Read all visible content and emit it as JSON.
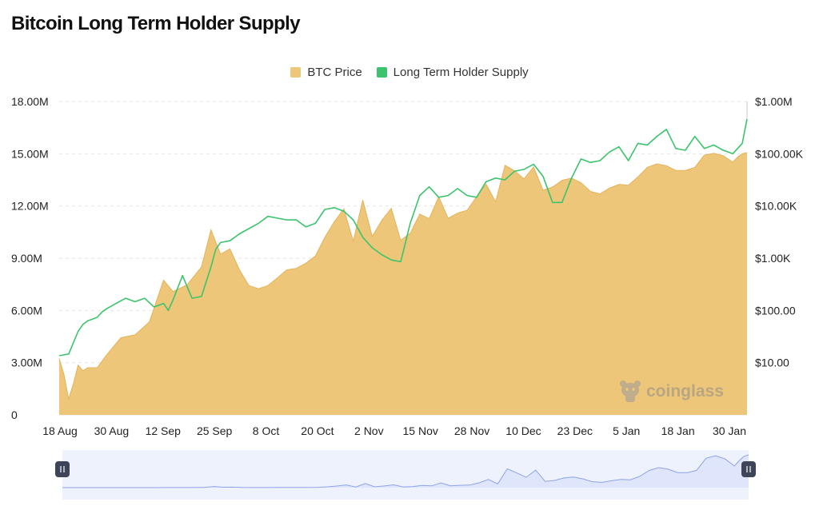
{
  "page_title": "Bitcoin Long Term Holder Supply",
  "watermark": "coinglass",
  "colors": {
    "price_fill": "#eec679",
    "price_stroke": "#e3b35a",
    "supply_line": "#3cc46c",
    "grid": "#e6e6e6",
    "navigator_fill": "#dfe6fb",
    "navigator_line": "#8fa3e8",
    "navigator_bg": "#eef2fd"
  },
  "chart_data": {
    "type": "area",
    "title": "Bitcoin Long Term Holder Supply",
    "legend": [
      {
        "name": "BTC Price",
        "color": "#eec679"
      },
      {
        "name": "Long Term Holder Supply",
        "color": "#3cc46c"
      }
    ],
    "legend_position": "top-center",
    "x_ticks": [
      "18 Aug",
      "30 Aug",
      "12 Sep",
      "25 Sep",
      "8 Oct",
      "20 Oct",
      "2 Nov",
      "15 Nov",
      "28 Nov",
      "10 Dec",
      "23 Dec",
      "5 Jan",
      "18 Jan",
      "30 Jan"
    ],
    "y_left": {
      "ticks": [
        "0",
        "3.00M",
        "6.00M",
        "9.00M",
        "12.00M",
        "15.00M",
        "18.00M"
      ],
      "range": [
        0,
        18000000
      ]
    },
    "y_right": {
      "ticks": [
        "$10.00",
        "$100.00",
        "$1.00K",
        "$10.00K",
        "$100.00K",
        "$1.00M"
      ],
      "scale": "log",
      "range": [
        1,
        1000000
      ]
    },
    "grid": true,
    "series": [
      {
        "name": "BTC Price",
        "axis": "right",
        "x": [
          0,
          2,
          4,
          6,
          8,
          10,
          12,
          16,
          20,
          26,
          32,
          38,
          44,
          48,
          54,
          60,
          64,
          68,
          72,
          76,
          80,
          84,
          88,
          92,
          96,
          100,
          104,
          108,
          112,
          116,
          120,
          124,
          128,
          132,
          136,
          140,
          144,
          148,
          152,
          156,
          160,
          164,
          168,
          172,
          176,
          180,
          184,
          188,
          192,
          196,
          200,
          204,
          208,
          212,
          216,
          220,
          224,
          228,
          232,
          236,
          240,
          244,
          248,
          252,
          256,
          260,
          264,
          268,
          272,
          276,
          280,
          284,
          286,
          288,
          290
        ],
        "values": [
          12,
          6,
          2,
          4,
          9,
          7,
          8,
          8,
          14,
          30,
          34,
          60,
          380,
          230,
          310,
          680,
          3500,
          1200,
          1500,
          600,
          300,
          260,
          300,
          420,
          600,
          640,
          800,
          1100,
          2500,
          5000,
          8800,
          2100,
          13000,
          2600,
          5300,
          9000,
          2200,
          3000,
          7000,
          5700,
          15000,
          5800,
          7300,
          8300,
          15000,
          26000,
          12000,
          60000,
          47000,
          33000,
          56000,
          20000,
          23000,
          31000,
          34000,
          28000,
          19000,
          17000,
          22000,
          26000,
          25000,
          36000,
          55000,
          64000,
          59000,
          48000,
          48000,
          55000,
          94000,
          102000,
          92000,
          69000,
          86000,
          100000,
          105000
        ]
      },
      {
        "name": "Long Term Holder Supply",
        "axis": "left",
        "x": [
          0,
          4,
          8,
          10,
          12,
          14,
          16,
          18,
          20,
          24,
          28,
          32,
          36,
          40,
          44,
          46,
          48,
          52,
          56,
          60,
          64,
          66,
          68,
          72,
          76,
          80,
          84,
          88,
          92,
          96,
          100,
          104,
          108,
          112,
          116,
          120,
          124,
          128,
          132,
          136,
          140,
          144,
          148,
          152,
          156,
          160,
          164,
          168,
          172,
          176,
          180,
          184,
          188,
          192,
          196,
          200,
          204,
          208,
          212,
          216,
          220,
          224,
          228,
          232,
          236,
          240,
          244,
          248,
          252,
          256,
          260,
          264,
          268,
          272,
          276,
          280,
          284,
          288,
          290
        ],
        "values": [
          3.4,
          3.5,
          4.8,
          5.2,
          5.4,
          5.5,
          5.6,
          5.9,
          6.1,
          6.4,
          6.7,
          6.5,
          6.7,
          6.2,
          6.4,
          6.0,
          6.6,
          8.0,
          6.7,
          6.8,
          8.5,
          9.5,
          9.9,
          10.0,
          10.4,
          10.7,
          11.0,
          11.4,
          11.3,
          11.2,
          11.2,
          10.8,
          11.0,
          11.8,
          11.9,
          11.7,
          11.2,
          10.2,
          9.6,
          9.2,
          8.9,
          8.8,
          11.0,
          12.6,
          13.1,
          12.5,
          12.6,
          13.0,
          12.6,
          12.5,
          13.4,
          13.6,
          13.5,
          14.0,
          14.1,
          14.4,
          13.7,
          12.2,
          12.2,
          13.6,
          14.7,
          14.5,
          14.6,
          15.1,
          15.4,
          14.6,
          15.6,
          15.5,
          16.0,
          16.4,
          15.3,
          15.2,
          16.0,
          15.3,
          15.5,
          15.2,
          15.0,
          15.6,
          17.0
        ]
      }
    ]
  }
}
